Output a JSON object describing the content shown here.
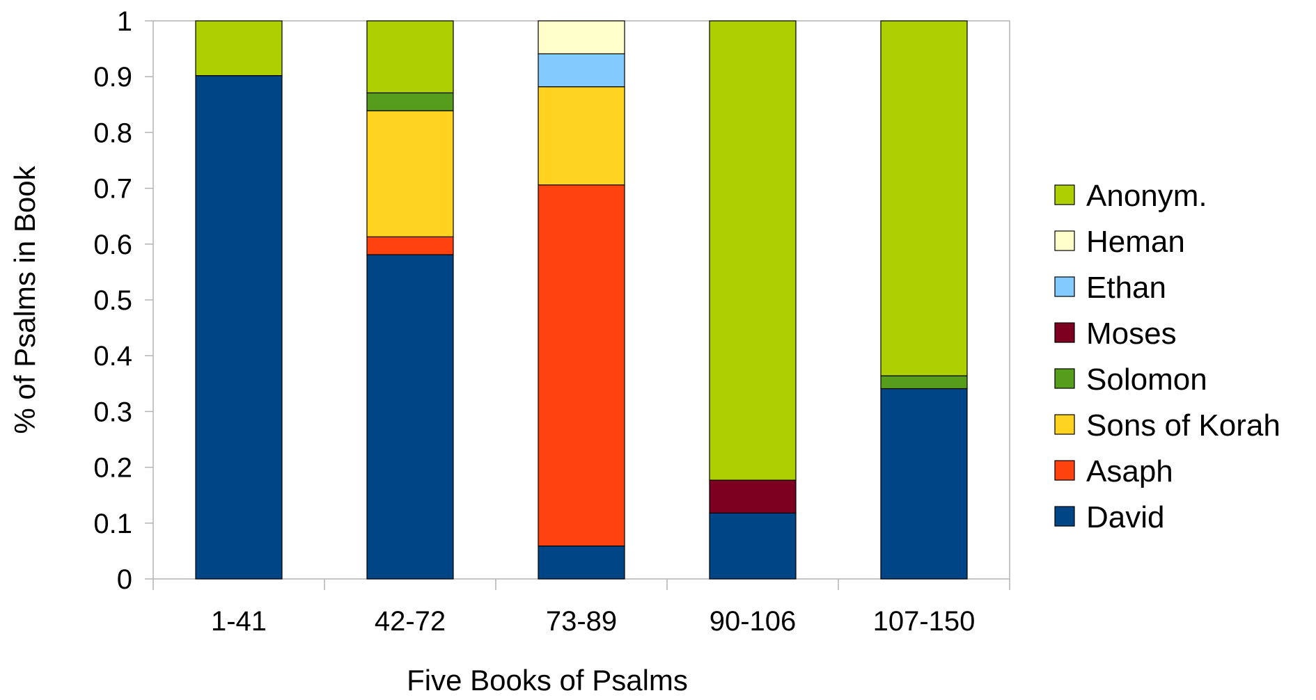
{
  "chart_data": {
    "type": "bar",
    "stacked": true,
    "categories": [
      "1-41",
      "42-72",
      "73-89",
      "90-106",
      "107-150"
    ],
    "series": [
      {
        "name": "David",
        "color": "#004586",
        "values": [
          0.902,
          0.581,
          0.059,
          0.118,
          0.341
        ]
      },
      {
        "name": "Asaph",
        "color": "#ff420e",
        "values": [
          0,
          0.032,
          0.647,
          0,
          0
        ]
      },
      {
        "name": "Sons of Korah",
        "color": "#ffd320",
        "values": [
          0,
          0.226,
          0.176,
          0,
          0
        ]
      },
      {
        "name": "Solomon",
        "color": "#579d1c",
        "values": [
          0,
          0.032,
          0,
          0,
          0.023
        ]
      },
      {
        "name": "Moses",
        "color": "#7e0021",
        "values": [
          0,
          0,
          0,
          0.059,
          0
        ]
      },
      {
        "name": "Ethan",
        "color": "#83caff",
        "values": [
          0,
          0,
          0.059,
          0,
          0
        ]
      },
      {
        "name": "Heman",
        "color": "#ffffcc",
        "values": [
          0,
          0,
          0.059,
          0,
          0
        ]
      },
      {
        "name": "Anonym.",
        "color": "#aecf00",
        "values": [
          0.098,
          0.129,
          0,
          0.823,
          0.636
        ]
      }
    ],
    "legend_order": [
      "Anonym.",
      "Heman",
      "Ethan",
      "Moses",
      "Solomon",
      "Sons of Korah",
      "Asaph",
      "David"
    ],
    "yticks": [
      "0",
      "0.1",
      "0.2",
      "0.3",
      "0.4",
      "0.5",
      "0.6",
      "0.7",
      "0.8",
      "0.9",
      "1"
    ],
    "ylim": [
      0,
      1
    ],
    "xlabel": "Five Books of Psalms",
    "ylabel": "% of Psalms in Book",
    "legend_position": "right",
    "grid": false
  }
}
